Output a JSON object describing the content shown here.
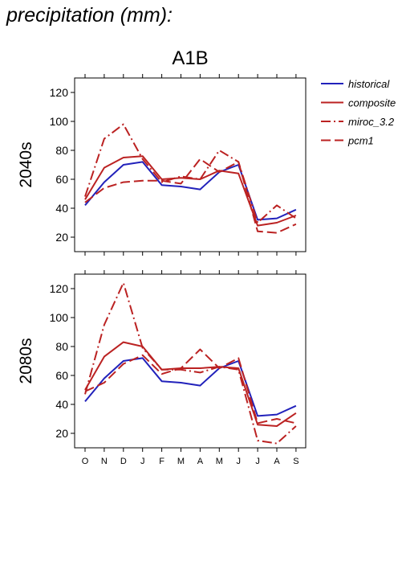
{
  "heading": "precipitation (mm):",
  "subtitle": "A1B",
  "chart_data": {
    "type": "line",
    "categories": [
      "O",
      "N",
      "D",
      "J",
      "F",
      "M",
      "A",
      "M",
      "J",
      "J",
      "A",
      "S"
    ],
    "ylim": [
      10,
      130
    ],
    "yticks": [
      20,
      40,
      60,
      80,
      100,
      120
    ],
    "grid": false,
    "legend_position": "top-right",
    "legend": [
      {
        "name": "historical",
        "color": "#2222bb",
        "dash": "solid"
      },
      {
        "name": "composite",
        "color": "#bb2222",
        "dash": "solid"
      },
      {
        "name": "miroc_3.2",
        "color": "#bb2222",
        "dash": "dashdot"
      },
      {
        "name": "pcm1",
        "color": "#bb2222",
        "dash": "dashed"
      }
    ],
    "panels": [
      {
        "label": "2040s",
        "series": [
          {
            "name": "historical",
            "values": [
              42,
              58,
              70,
              72,
              56,
              55,
              53,
              65,
              70,
              32,
              33,
              39
            ]
          },
          {
            "name": "composite",
            "values": [
              46,
              68,
              75,
              76,
              60,
              61,
              60,
              66,
              64,
              28,
              30,
              35
            ]
          },
          {
            "name": "miroc_3.2",
            "values": [
              48,
              88,
              98,
              74,
              58,
              62,
              60,
              80,
              72,
              30,
              42,
              33
            ]
          },
          {
            "name": "pcm1",
            "values": [
              44,
              54,
              58,
              59,
              59,
              57,
              74,
              65,
              72,
              24,
              23,
              29
            ]
          }
        ]
      },
      {
        "label": "2080s",
        "series": [
          {
            "name": "historical",
            "values": [
              42,
              58,
              70,
              72,
              56,
              55,
              53,
              65,
              70,
              32,
              33,
              39
            ]
          },
          {
            "name": "composite",
            "values": [
              50,
              73,
              83,
              80,
              64,
              65,
              65,
              66,
              65,
              26,
              25,
              34
            ]
          },
          {
            "name": "miroc_3.2",
            "values": [
              47,
              95,
              124,
              79,
              64,
              64,
              62,
              66,
              64,
              15,
              13,
              25
            ]
          },
          {
            "name": "pcm1",
            "values": [
              49,
              55,
              68,
              74,
              61,
              65,
              78,
              65,
              72,
              27,
              30,
              27
            ]
          }
        ]
      }
    ]
  }
}
